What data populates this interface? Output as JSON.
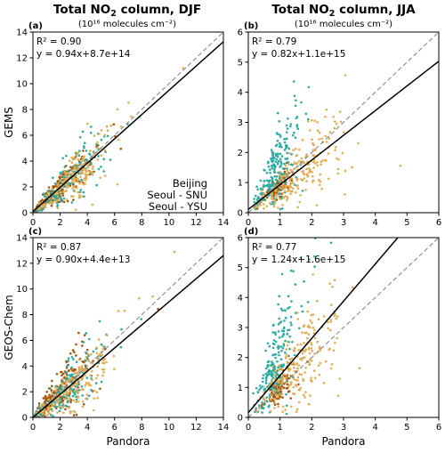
{
  "figure": {
    "title_left_main": "Total NO",
    "title_left_sub": "2",
    "title_left_rest": " column, DJF",
    "title_right_main": "Total NO",
    "title_right_sub": "2",
    "title_right_rest": " column, JJA",
    "units_left": "(10¹⁶ molecules cm⁻²)",
    "units_right": "(10¹⁶ molecules cm⁻²)",
    "legend": [
      {
        "label": "Beijing",
        "color": "#a6530a"
      },
      {
        "label": "Seoul - SNU",
        "color": "#2aaba0"
      },
      {
        "label": "Seoul - YSU",
        "color": "#e3ac50"
      }
    ]
  },
  "chart_data": [
    {
      "type": "scatter",
      "panel_label": "(a)",
      "season": "DJF",
      "ylabel": "GEMS",
      "xlabel": "",
      "xlim": [
        0,
        14
      ],
      "ylim": [
        0,
        14
      ],
      "xticks": [
        0,
        2,
        4,
        6,
        8,
        10,
        12,
        14
      ],
      "yticks": [
        0,
        2,
        4,
        6,
        8,
        10,
        12,
        14
      ],
      "r2_text": "R² = 0.90",
      "fit_text": "y = 0.94x+8.7e+14",
      "fit": {
        "slope": 0.94,
        "intercept": 0.087
      },
      "one_to_one": true
    },
    {
      "type": "scatter",
      "panel_label": "(b)",
      "season": "JJA",
      "ylabel": "",
      "xlabel": "",
      "xlim": [
        0,
        6
      ],
      "ylim": [
        0,
        6
      ],
      "xticks": [
        0,
        1,
        2,
        3,
        4,
        5,
        6
      ],
      "yticks": [
        0,
        1,
        2,
        3,
        4,
        5,
        6
      ],
      "r2_text": "R² = 0.79",
      "fit_text": "y = 0.82x+1.1e+15",
      "fit": {
        "slope": 0.82,
        "intercept": 0.11
      },
      "one_to_one": true
    },
    {
      "type": "scatter",
      "panel_label": "(c)",
      "season": "DJF",
      "ylabel": "GEOS-Chem",
      "xlabel": "Pandora",
      "xlim": [
        0,
        14
      ],
      "ylim": [
        0,
        14
      ],
      "xticks": [
        0,
        2,
        4,
        6,
        8,
        10,
        12,
        14
      ],
      "yticks": [
        0,
        2,
        4,
        6,
        8,
        10,
        12,
        14
      ],
      "r2_text": "R² = 0.87",
      "fit_text": "y = 0.90x+4.4e+13",
      "fit": {
        "slope": 0.9,
        "intercept": 0.0044
      },
      "one_to_one": true
    },
    {
      "type": "scatter",
      "panel_label": "(d)",
      "season": "JJA",
      "ylabel": "",
      "xlabel": "Pandora",
      "xlim": [
        0,
        6
      ],
      "ylim": [
        0,
        6
      ],
      "xticks": [
        0,
        1,
        2,
        3,
        4,
        5,
        6
      ],
      "yticks": [
        0,
        1,
        2,
        3,
        4,
        5,
        6
      ],
      "r2_text": "R² = 0.77",
      "fit_text": "y = 1.24x+1.6e+15",
      "fit": {
        "slope": 1.24,
        "intercept": 0.16
      },
      "one_to_one": true
    }
  ]
}
